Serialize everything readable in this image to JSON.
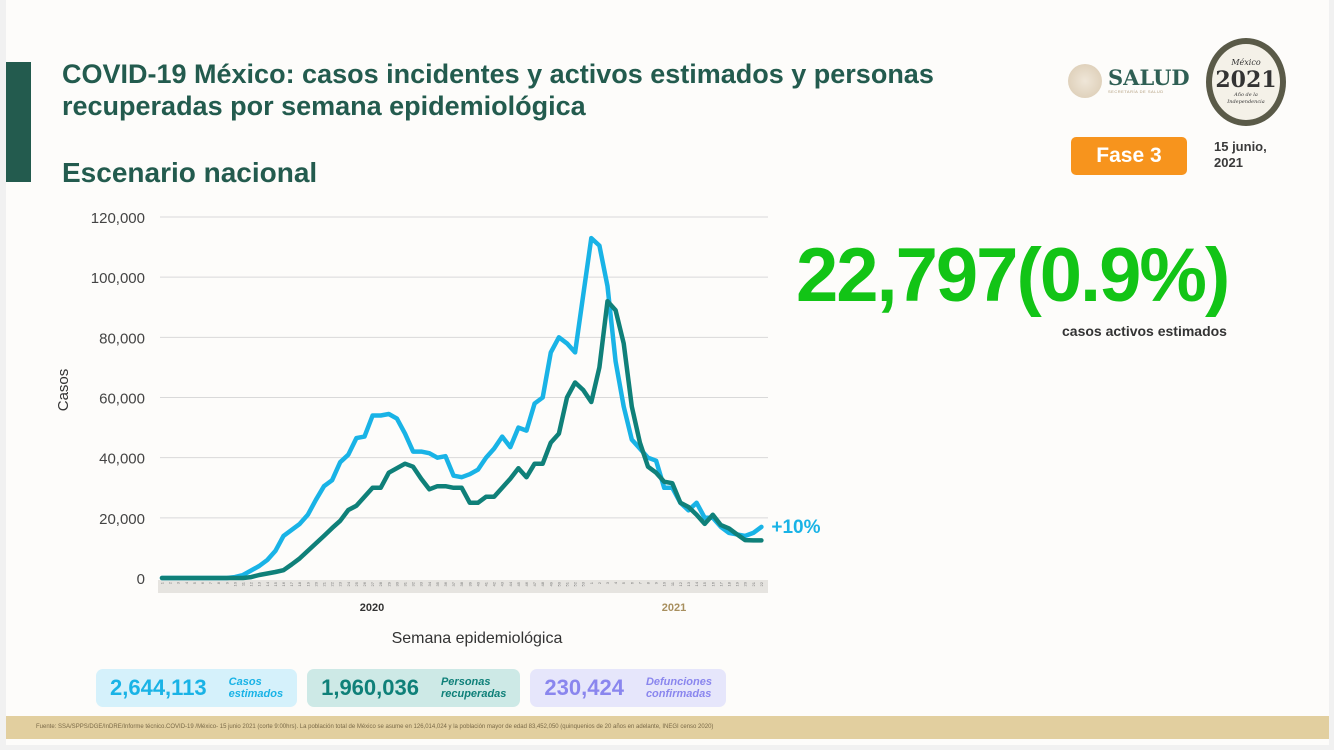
{
  "header": {
    "title": "COVID-19 México: casos incidentes y activos estimados y personas recuperadas por semana epidemiológica",
    "subtitle": "Escenario nacional",
    "salud_logo": "SALUD",
    "salud_logo_sub": "SECRETARÍA DE SALUD",
    "logo_2021": {
      "top": "México",
      "year": "2021",
      "bottom": "Año de la Independencia"
    },
    "phase": "Fase 3",
    "date": "15 junio, 2021"
  },
  "highlight": {
    "value": "22,797(0.9%)",
    "label": "casos activos estimados"
  },
  "colors": {
    "light_series": "#19b3e6",
    "dark_series": "#0f8079",
    "highlight": "#12c416",
    "brand": "#235b4e",
    "phase": "#f7941d"
  },
  "chart_data": {
    "type": "line",
    "ylabel": "Casos",
    "xlabel": "Semana epidemiológica",
    "ylim": [
      0,
      120000
    ],
    "yticks": [
      "0",
      "20,000",
      "40,000",
      "60,000",
      "80,000",
      "100,000",
      "120,000"
    ],
    "grid": true,
    "year_labels": [
      "2020",
      "2021"
    ],
    "x": {
      "2020": [
        1,
        2,
        3,
        4,
        5,
        6,
        7,
        8,
        9,
        10,
        11,
        12,
        13,
        14,
        15,
        16,
        17,
        18,
        19,
        20,
        21,
        22,
        23,
        24,
        25,
        26,
        27,
        28,
        29,
        30,
        31,
        32,
        33,
        34,
        35,
        36,
        37,
        38,
        39,
        40,
        41,
        42,
        43,
        44,
        45,
        46,
        47,
        48,
        49,
        50,
        51,
        52,
        53
      ],
      "2021": [
        1,
        2,
        3,
        4,
        5,
        6,
        7,
        8,
        9,
        10,
        11,
        12,
        13,
        14,
        15,
        16,
        17,
        18,
        19,
        20,
        21,
        22
      ]
    },
    "series": [
      {
        "color": "#19b3e6",
        "end_annotation": "+10%",
        "values": [
          0,
          0,
          0,
          0,
          0,
          0,
          0,
          0,
          0,
          300,
          1000,
          2500,
          4000,
          6000,
          9000,
          14000,
          16000,
          18000,
          21000,
          26000,
          30500,
          32500,
          38500,
          41000,
          46500,
          47000,
          54000,
          54000,
          54500,
          53000,
          48000,
          42000,
          42000,
          41500,
          40000,
          40500,
          34000,
          33500,
          34500,
          36000,
          40000,
          43000,
          47000,
          43500,
          50000,
          49000,
          58000,
          60000,
          75000,
          80000,
          78000,
          75000,
          94000,
          113000,
          110500,
          97000,
          72000,
          57000,
          46000,
          43000,
          40000,
          39000,
          30000,
          30000,
          25000,
          22500,
          25000,
          20000,
          20000,
          17000,
          15000,
          14500,
          14000,
          15000,
          17000
        ]
      },
      {
        "color": "#0f8079",
        "values": [
          0,
          0,
          0,
          0,
          0,
          0,
          0,
          0,
          0,
          0,
          0,
          300,
          1000,
          1500,
          2000,
          2600,
          4500,
          6500,
          9000,
          11500,
          14000,
          16600,
          19000,
          22600,
          24000,
          27000,
          30000,
          30000,
          35000,
          36500,
          38000,
          37000,
          33000,
          29500,
          30500,
          30500,
          30000,
          30000,
          25000,
          25000,
          27000,
          27000,
          30000,
          33000,
          36500,
          33500,
          38000,
          38000,
          45000,
          48000,
          60000,
          65000,
          62500,
          58500,
          70000,
          92000,
          89000,
          78000,
          57000,
          45000,
          37000,
          35000,
          32000,
          31500,
          25000,
          23600,
          21000,
          18000,
          21000,
          17600,
          16500,
          14500,
          12600,
          12500,
          12500
        ]
      }
    ]
  },
  "cards": [
    {
      "value": "2,644,113",
      "label1": "Casos",
      "label2": "estimados"
    },
    {
      "value": "1,960,036",
      "label1": "Personas",
      "label2": "recuperadas"
    },
    {
      "value": "230,424",
      "label1": "Defunciones",
      "label2": "confirmadas"
    }
  ],
  "footer": "Fuente: SSA/SPPS/DGE/InDRE/Informe técnico.COVID-19 /México- 15 junio 2021 (corte 9:00hrs). La población total de México se asume en 126,014,024 y la población mayor de edad 83,452,050 (quinquenios de 20 años en adelante, INEGI censo 2020)"
}
